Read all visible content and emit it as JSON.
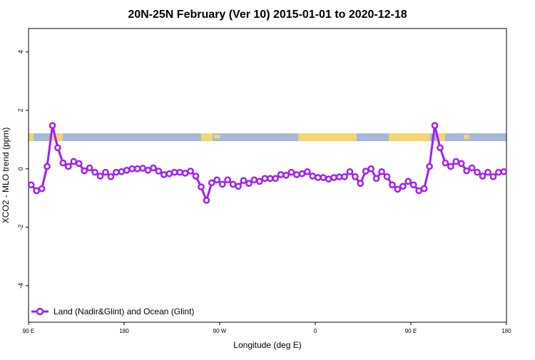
{
  "chart_data": {
    "type": "line",
    "title": "20N-25N February (Ver 10)   2015-01-01 to 2020-12-18",
    "x_label": "Longitude (deg E)",
    "y_label": "XCO2 - MLO trend (ppm)",
    "x": [
      92.5,
      97.5,
      102.5,
      107.5,
      112.5,
      117.5,
      122.5,
      127.5,
      132.5,
      137.5,
      142.5,
      147.5,
      152.5,
      157.5,
      162.5,
      167.5,
      172.5,
      177.5,
      182.5,
      187.5,
      192.5,
      197.5,
      202.5,
      207.5,
      212.5,
      217.5,
      222.5,
      227.5,
      232.5,
      237.5,
      242.5,
      247.5,
      252.5,
      257.5,
      262.5,
      267.5,
      272.5,
      277.5,
      282.5,
      287.5,
      292.5,
      297.5,
      302.5,
      307.5,
      312.5,
      317.5,
      322.5,
      327.5,
      332.5,
      337.5,
      342.5,
      347.5,
      352.5,
      357.5,
      362.5,
      367.5,
      372.5,
      377.5,
      382.5,
      387.5,
      392.5,
      397.5,
      402.5,
      407.5,
      412.5,
      417.5,
      422.5,
      427.5,
      432.5,
      437.5,
      442.5,
      447.5,
      452.5,
      457.5,
      462.5,
      467.5,
      472.5,
      477.5,
      482.5,
      487.5,
      492.5,
      497.5,
      502.5,
      507.5,
      512.5,
      517.5,
      522.5,
      527.5,
      532.5,
      537.5
    ],
    "series": [
      {
        "name": "Land (Nadir&Glint) and Ocean (Glint)",
        "color": "#a020f0",
        "values": [
          -0.55,
          -0.75,
          -0.68,
          0.08,
          1.48,
          0.72,
          0.2,
          0.08,
          0.25,
          0.18,
          -0.07,
          0.03,
          -0.12,
          -0.25,
          -0.12,
          -0.27,
          -0.12,
          -0.1,
          -0.05,
          0.0,
          0.0,
          0.02,
          -0.05,
          0.03,
          -0.08,
          -0.2,
          -0.17,
          -0.12,
          -0.12,
          -0.15,
          -0.08,
          -0.25,
          -0.62,
          -1.08,
          -0.48,
          -0.38,
          -0.53,
          -0.38,
          -0.53,
          -0.6,
          -0.4,
          -0.5,
          -0.38,
          -0.43,
          -0.33,
          -0.33,
          -0.33,
          -0.2,
          -0.22,
          -0.12,
          -0.2,
          -0.17,
          -0.1,
          -0.25,
          -0.3,
          -0.3,
          -0.35,
          -0.3,
          -0.28,
          -0.27,
          -0.1,
          -0.27,
          -0.5,
          -0.08,
          0.0,
          -0.33,
          -0.1,
          -0.27,
          -0.55,
          -0.7,
          -0.6,
          -0.43,
          -0.55,
          -0.75,
          -0.68,
          0.08,
          1.48,
          0.72,
          0.2,
          0.08,
          0.25,
          0.18,
          -0.07,
          0.03,
          -0.12,
          -0.25,
          -0.12,
          -0.27,
          -0.12,
          -0.1
        ]
      }
    ],
    "xlim": [
      90,
      540
    ],
    "xticks": [
      {
        "value": 90,
        "label": "90 E"
      },
      180,
      {
        "value": 270,
        "label": "90 W"
      },
      {
        "value": 360,
        "label": "0"
      },
      {
        "value": 450,
        "label": "90 E"
      },
      {
        "value": 540,
        "label": "180"
      }
    ],
    "ylim": [
      -5.25,
      4.8
    ],
    "yticks": [
      -4,
      -2,
      0,
      2,
      4
    ],
    "legend": "bottom-left"
  }
}
